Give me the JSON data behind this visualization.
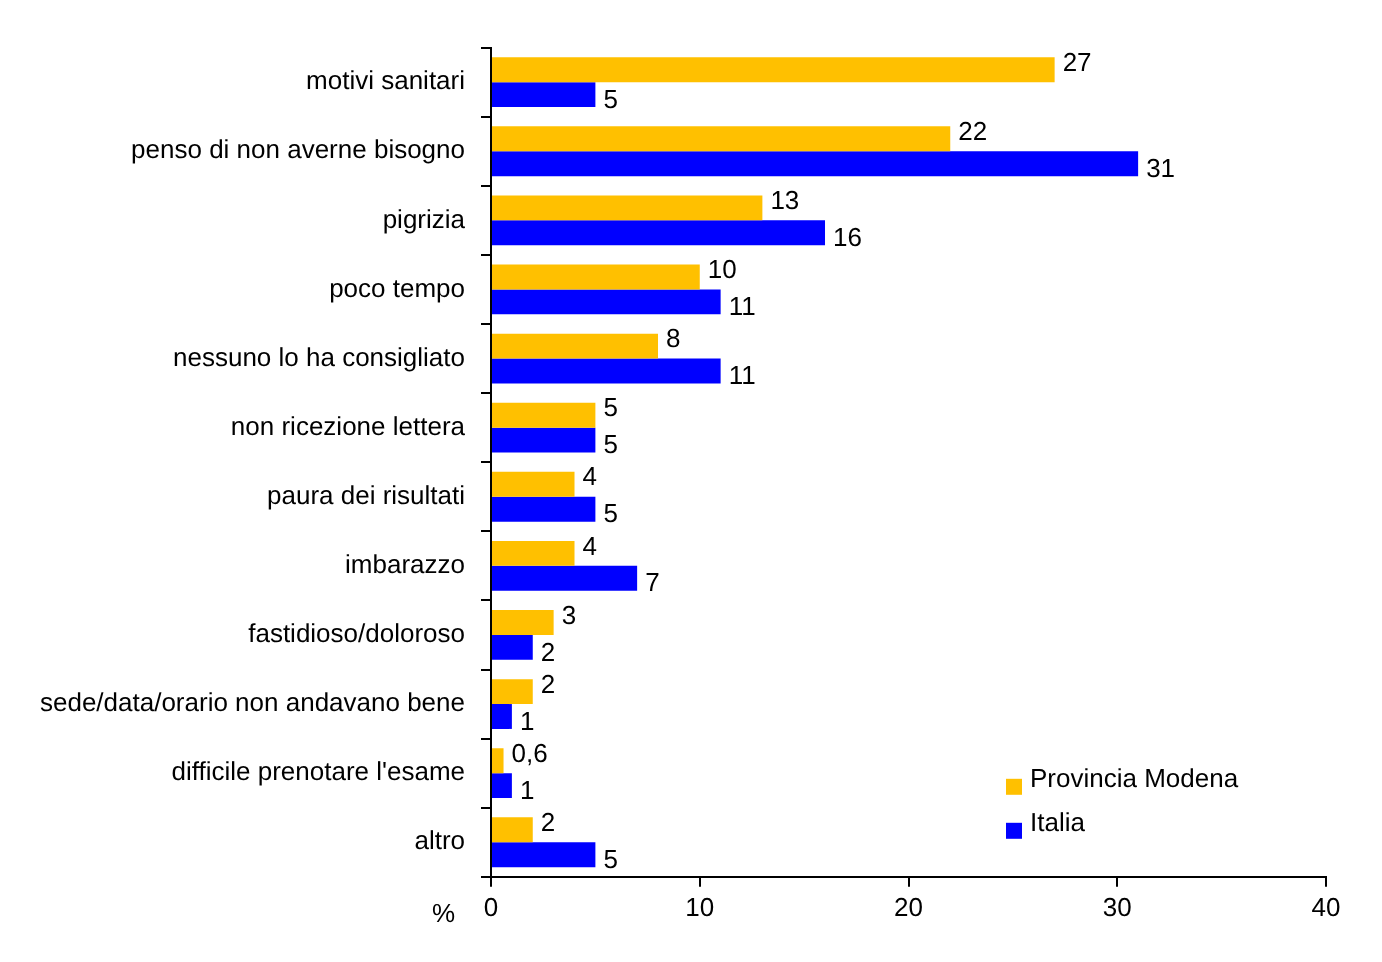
{
  "chart_data": {
    "type": "bar",
    "orientation": "horizontal",
    "xlabel": "%",
    "categories": [
      "motivi sanitari",
      "penso di non averne bisogno",
      "pigrizia",
      "poco tempo",
      "nessuno lo ha consigliato",
      "non ricezione lettera",
      "paura dei risultati",
      "imbarazzo",
      "fastidioso/doloroso",
      "sede/data/orario non andavano bene",
      "difficile prenotare l'esame",
      "altro"
    ],
    "series": [
      {
        "name": "Provincia Modena",
        "color": "#ffc000",
        "values": [
          27,
          22,
          13,
          10,
          8,
          5,
          4,
          4,
          3,
          2,
          0.6,
          2
        ],
        "value_labels": [
          "27",
          "22",
          "13",
          "10",
          "8",
          "5",
          "4",
          "4",
          "3",
          "2",
          "0,6",
          "2"
        ]
      },
      {
        "name": "Italia",
        "color": "#0000ff",
        "values": [
          5,
          31,
          16,
          11,
          11,
          5,
          5,
          7,
          2,
          1,
          1,
          5
        ],
        "value_labels": [
          "5",
          "31",
          "16",
          "11",
          "11",
          "5",
          "5",
          "7",
          "2",
          "1",
          "1",
          "5"
        ]
      }
    ],
    "xlim": [
      0,
      40
    ],
    "xticks": [
      0,
      10,
      20,
      30,
      40
    ],
    "grid": false,
    "legend": "bottom right"
  }
}
